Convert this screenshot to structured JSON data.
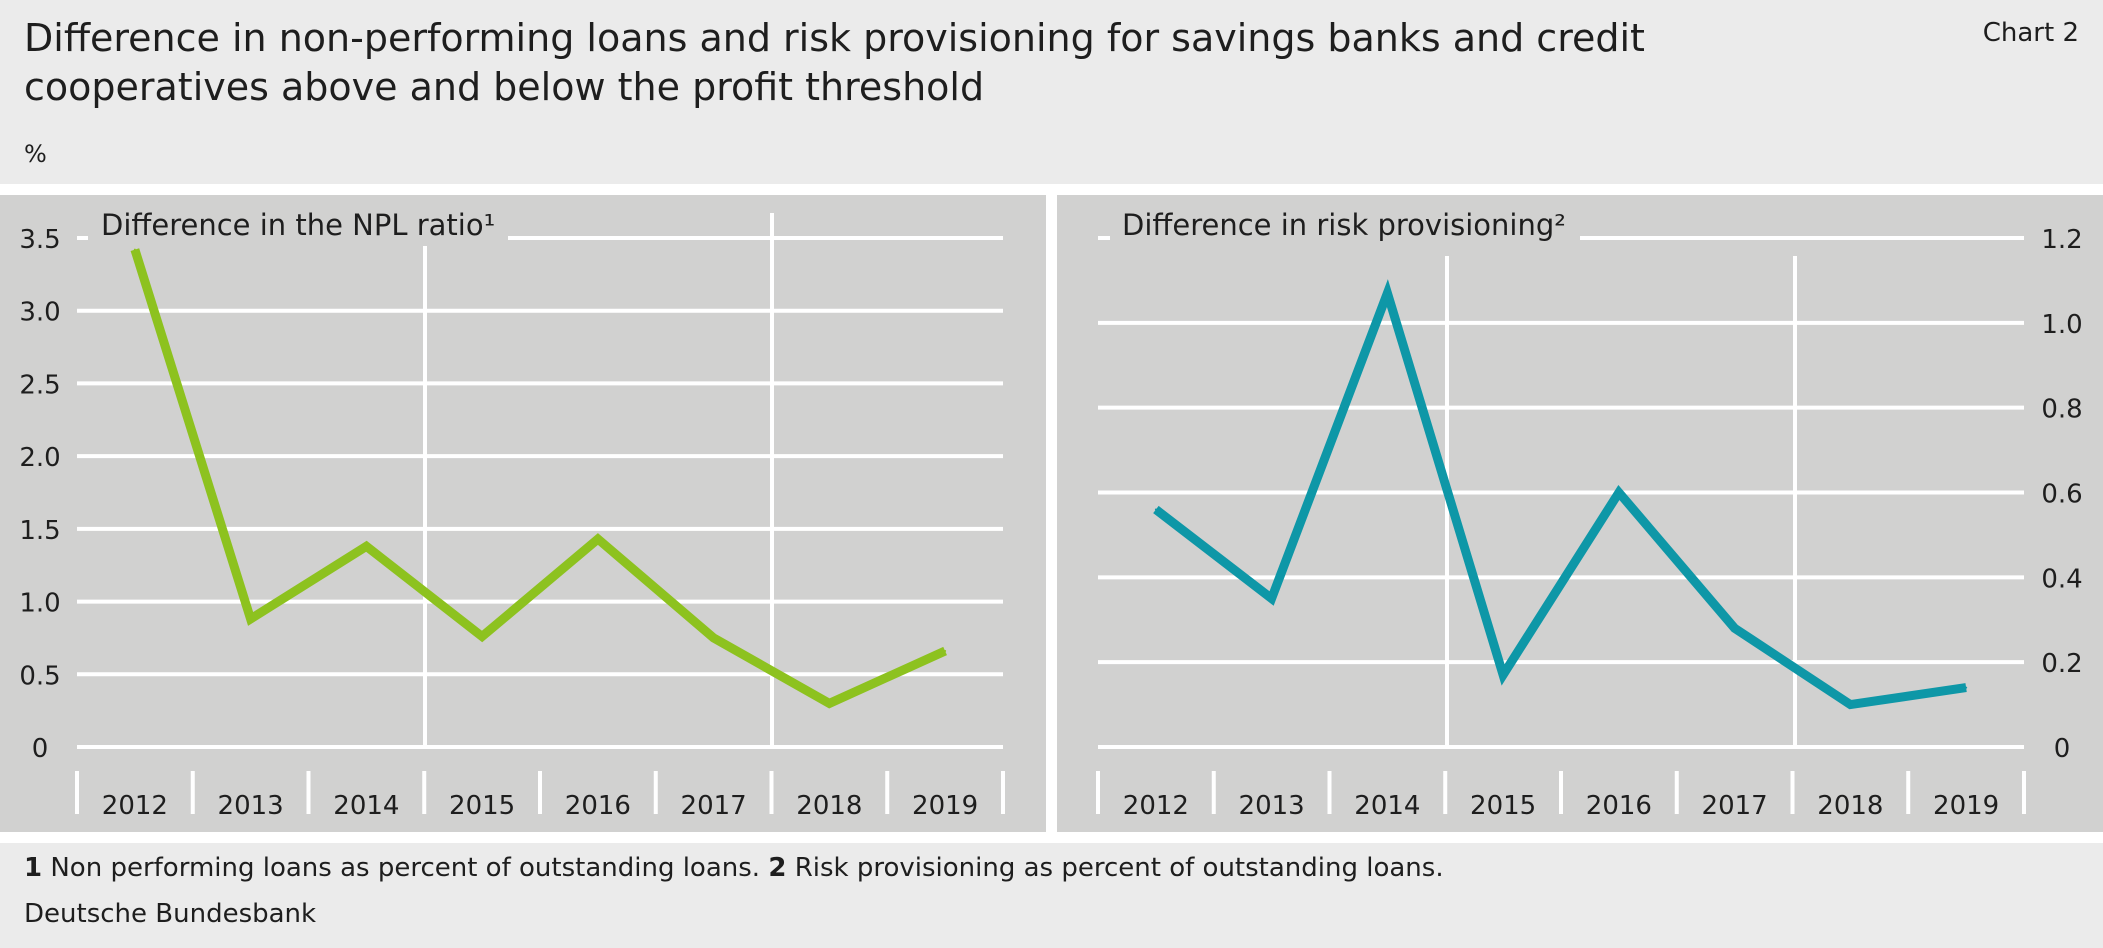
{
  "header": {
    "title": "Difference in non-performing loans and risk provisioning for savings banks and credit cooperatives above and below the profit threshold",
    "chart_number": "Chart 2",
    "unit": "%"
  },
  "footer": {
    "fn1_num": "1",
    "fn1_text": "Non performing loans as percent of outstanding loans.",
    "fn2_num": "2",
    "fn2_text": "Risk provisioning as percent of outstanding loans.",
    "source": "Deutsche Bundesbank"
  },
  "colors": {
    "page_bg": "#ebebeb",
    "panel_bg": "#d1d1d0",
    "grid": "#ffffff",
    "npl_line": "#8dc21f",
    "risk_line": "#0e97a7"
  },
  "chart_data": [
    {
      "type": "line",
      "title": "Difference in the NPL ratio¹",
      "categories": [
        "2012",
        "2013",
        "2014",
        "2015",
        "2016",
        "2017",
        "2018",
        "2019"
      ],
      "series": [
        {
          "values": [
            3.42,
            0.88,
            1.38,
            0.76,
            1.43,
            0.75,
            0.3,
            0.66
          ]
        }
      ],
      "ylim": [
        0,
        3.5
      ],
      "yticks": [
        "0",
        "0.5",
        "1.0",
        "1.5",
        "2.0",
        "2.5",
        "3.0",
        "3.5"
      ],
      "yaxis_position": "left",
      "grid": true
    },
    {
      "type": "line",
      "title": "Difference in risk provisioning²",
      "categories": [
        "2012",
        "2013",
        "2014",
        "2015",
        "2016",
        "2017",
        "2018",
        "2019"
      ],
      "series": [
        {
          "values": [
            0.56,
            0.35,
            1.07,
            0.17,
            0.6,
            0.28,
            0.1,
            0.14
          ]
        }
      ],
      "ylim": [
        0,
        1.2
      ],
      "yticks": [
        "0",
        "0.2",
        "0.4",
        "0.6",
        "0.8",
        "1.0",
        "1.2"
      ],
      "yaxis_position": "right",
      "grid": true
    }
  ]
}
